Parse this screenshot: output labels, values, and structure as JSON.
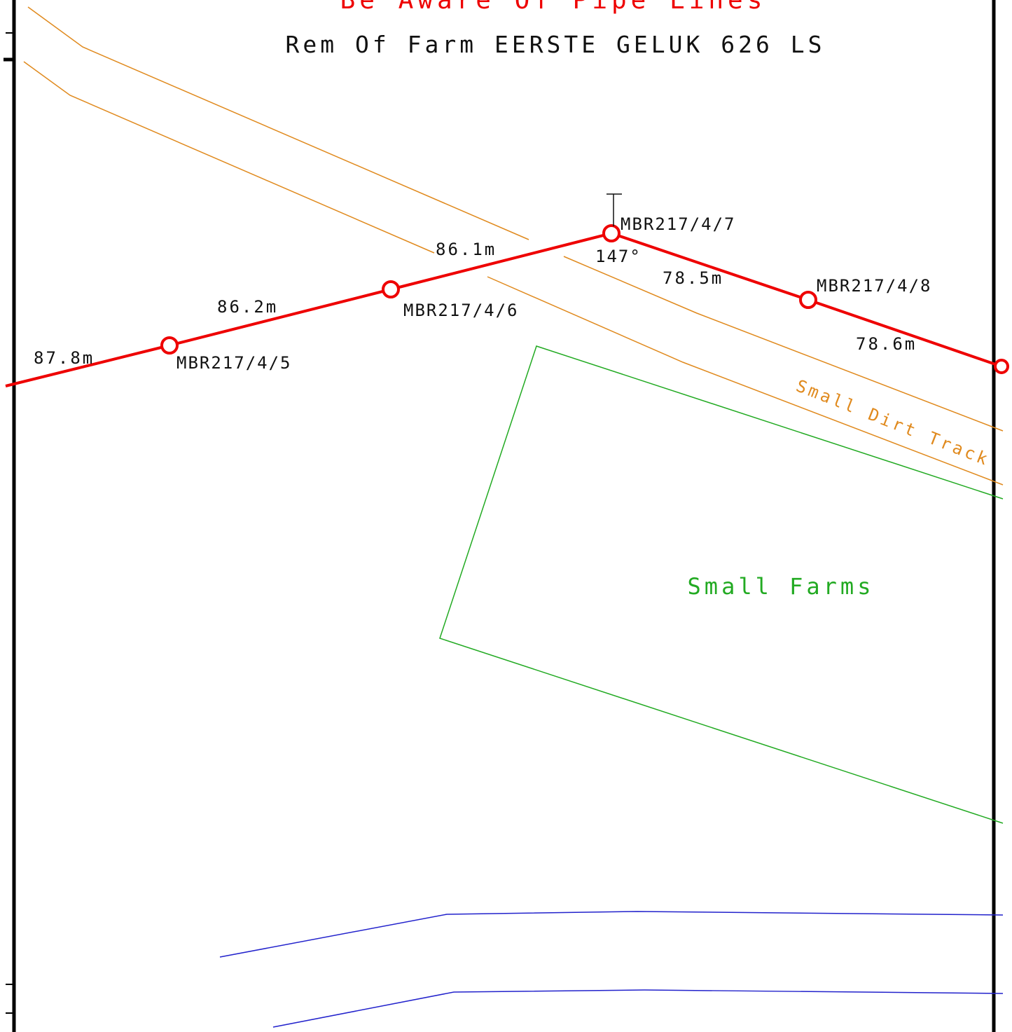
{
  "header": {
    "warning": "Be Aware Of Pipe Lines",
    "farm_name": "Rem Of Farm EERSTE GELUK 626 LS"
  },
  "colors": {
    "pipeline": "#ee0000",
    "track": "#e08a1e",
    "farm_boundary": "#22aa22",
    "water": "#2222cc",
    "frame": "#000000",
    "text": "#111111"
  },
  "pipeline": {
    "markers": [
      {
        "id": "MBR217/4/5"
      },
      {
        "id": "MBR217/4/6"
      },
      {
        "id": "MBR217/4/7"
      },
      {
        "id": "MBR217/4/8"
      }
    ],
    "segment_lengths": [
      "87.8m",
      "86.2m",
      "86.1m",
      "78.5m",
      "78.6m"
    ],
    "deflection_angle": "147°"
  },
  "areas": {
    "small_farms": "Small Farms",
    "dirt_track": "Small Dirt Track"
  }
}
